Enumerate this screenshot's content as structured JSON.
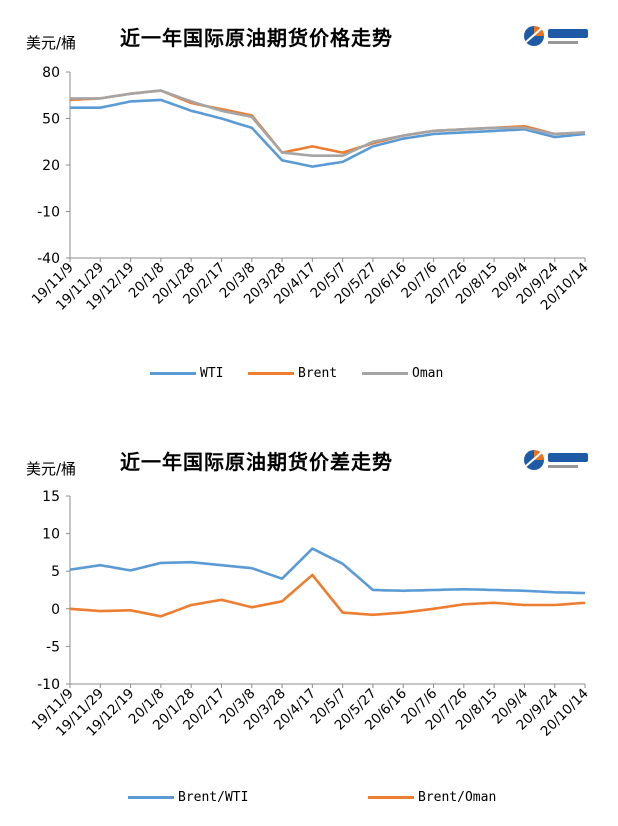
{
  "chart_data": [
    {
      "type": "line",
      "title": "近一年国际原油期货价格走势",
      "ylabel": "美元/桶",
      "xlabel": "",
      "ylim": [
        -40,
        80
      ],
      "yticks": [
        80,
        50,
        20,
        -10,
        -40
      ],
      "grid": false,
      "legend_position": "bottom",
      "categories": [
        "19/11/9",
        "19/11/29",
        "19/12/19",
        "20/1/8",
        "20/1/28",
        "20/2/17",
        "20/3/8",
        "20/3/28",
        "20/4/17",
        "20/5/7",
        "20/5/27",
        "20/6/16",
        "20/7/6",
        "20/7/26",
        "20/8/15",
        "20/9/4",
        "20/9/24",
        "20/10/14"
      ],
      "series": [
        {
          "name": "WTI",
          "color": "#5B9BD5",
          "values": [
            57,
            57,
            61,
            62,
            55,
            50,
            44,
            23,
            19,
            22,
            32,
            37,
            40,
            41,
            42,
            43,
            38,
            40
          ]
        },
        {
          "name": "Brent",
          "color": "#ED7D31",
          "values": [
            62,
            63,
            66,
            68,
            60,
            56,
            52,
            28,
            32,
            28,
            34,
            39,
            42,
            43,
            44,
            45,
            40,
            41
          ]
        },
        {
          "name": "Oman",
          "color": "#A5A5A5",
          "values": [
            63,
            63,
            66,
            68,
            61,
            55,
            51,
            28,
            26,
            26,
            35,
            39,
            42,
            43,
            44,
            44,
            40,
            41
          ]
        }
      ]
    },
    {
      "type": "line",
      "title": "近一年国际原油期货价差走势",
      "ylabel": "美元/桶",
      "xlabel": "",
      "ylim": [
        -10,
        15
      ],
      "yticks": [
        15,
        10,
        5,
        0,
        -5,
        -10
      ],
      "grid": false,
      "legend_position": "bottom",
      "categories": [
        "19/11/9",
        "19/11/29",
        "19/12/19",
        "20/1/8",
        "20/1/28",
        "20/2/17",
        "20/3/8",
        "20/3/28",
        "20/4/17",
        "20/5/7",
        "20/5/27",
        "20/6/16",
        "20/7/6",
        "20/7/26",
        "20/8/15",
        "20/9/4",
        "20/9/24",
        "20/10/14"
      ],
      "series": [
        {
          "name": "Brent/WTI",
          "color": "#5B9BD5",
          "values": [
            5.2,
            5.8,
            5.1,
            6.1,
            6.2,
            5.8,
            5.4,
            4.0,
            8.0,
            6.0,
            2.5,
            2.4,
            2.5,
            2.6,
            2.5,
            2.4,
            2.2,
            2.1
          ]
        },
        {
          "name": "Brent/Oman",
          "color": "#ED7D31",
          "values": [
            0.0,
            -0.3,
            -0.2,
            -1.0,
            0.5,
            1.2,
            0.2,
            1.0,
            4.5,
            -0.5,
            -0.8,
            -0.5,
            0.0,
            0.6,
            0.8,
            0.5,
            0.5,
            0.8
          ]
        }
      ]
    }
  ]
}
